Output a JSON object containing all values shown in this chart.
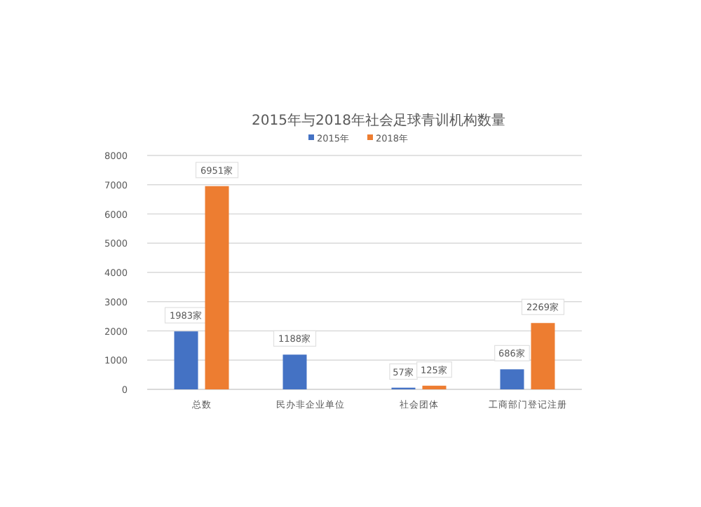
{
  "chart_data": {
    "type": "bar",
    "title": "2015年与2018年社会足球青训机构数量",
    "categories": [
      "总数",
      "民办非企业单位",
      "社会团体",
      "工商部门登记注册"
    ],
    "series": [
      {
        "name": "2015年",
        "color": "#4472c4",
        "values": [
          1983,
          1188,
          57,
          686
        ],
        "value_labels": [
          "1983家",
          "1188家",
          "57家",
          "686家"
        ]
      },
      {
        "name": "2018年",
        "color": "#ed7d31",
        "values": [
          6951,
          null,
          125,
          2269
        ],
        "value_labels": [
          "6951家",
          null,
          "125家",
          "2269家"
        ]
      }
    ],
    "ylim": [
      0,
      8000
    ],
    "yticks": [
      0,
      1000,
      2000,
      3000,
      4000,
      5000,
      6000,
      7000,
      8000
    ],
    "grid": "y",
    "legend": "top"
  }
}
